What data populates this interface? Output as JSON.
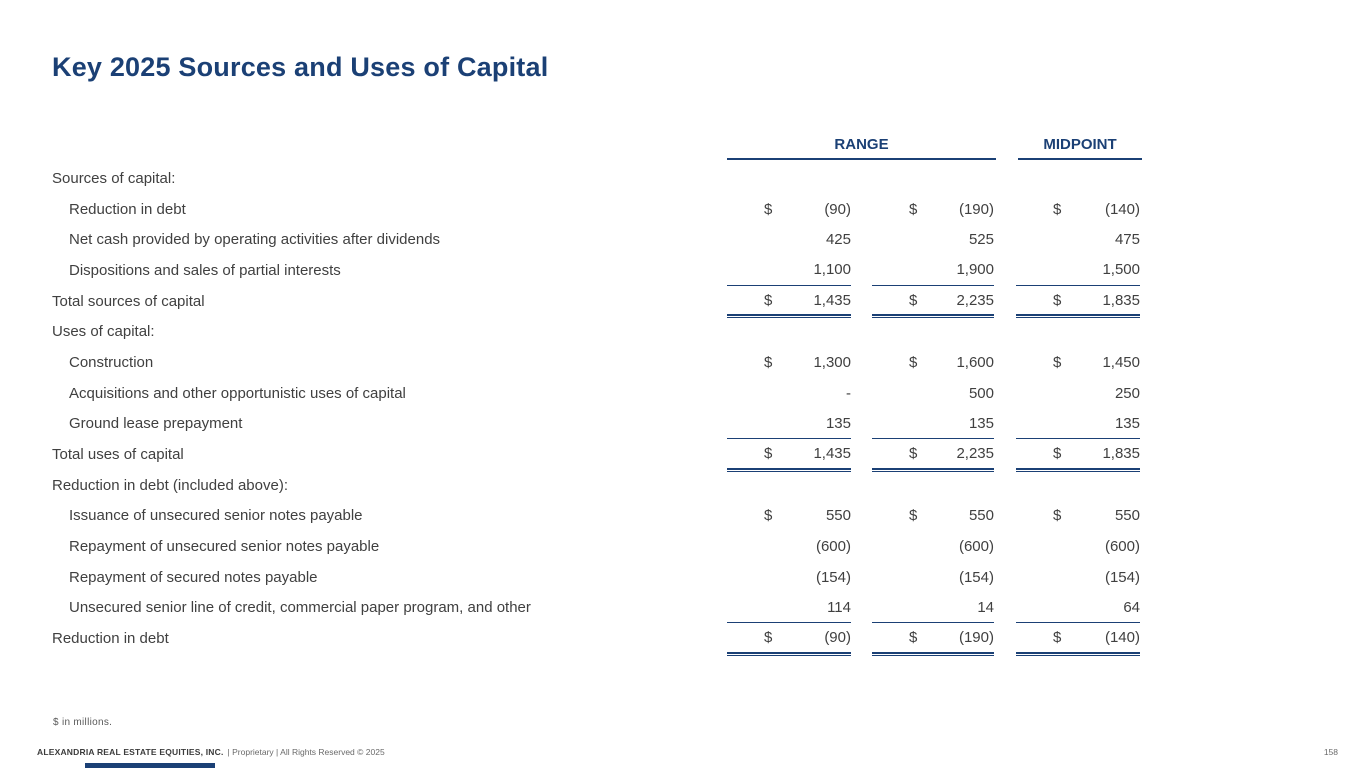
{
  "slide": {
    "title": "Key 2025 Sources and Uses of Capital",
    "footnote": "$ in millions.",
    "footer": {
      "company": "ALEXANDRIA REAL ESTATE EQUITIES, INC.",
      "rights": "| Proprietary | All Rights Reserved © 2025",
      "page": "158"
    }
  },
  "colors": {
    "navy": "#1B4075",
    "body_text": "#404040"
  },
  "table": {
    "headers": {
      "range": "RANGE",
      "midpoint": "MIDPOINT"
    },
    "columns": [
      "range_low",
      "range_high",
      "midpoint"
    ],
    "rows": [
      {
        "label": "Sources of capital:"
      },
      {
        "label": "Reduction in debt",
        "d1": "$",
        "v1": "(90)",
        "d2": "$",
        "v2": "(190)",
        "d3": "$",
        "v3": "(140)"
      },
      {
        "label": "Net cash provided by operating activities after dividends",
        "v1": "425",
        "v2": "525",
        "v3": "475"
      },
      {
        "label": "Dispositions and sales of partial interests",
        "v1": "1,100",
        "v2": "1,900",
        "v3": "1,500"
      },
      {
        "label": "Total sources of capital",
        "d1": "$",
        "v1": "1,435",
        "d2": "$",
        "v2": "2,235",
        "d3": "$",
        "v3": "1,835"
      },
      {
        "label": "Uses of capital:"
      },
      {
        "label": "Construction",
        "d1": "$",
        "v1": "1,300",
        "d2": "$",
        "v2": "1,600",
        "d3": "$",
        "v3": "1,450"
      },
      {
        "label": "Acquisitions and other opportunistic uses of capital",
        "v1": "-",
        "v2": "500",
        "v3": "250"
      },
      {
        "label": "Ground lease prepayment",
        "v1": "135",
        "v2": "135",
        "v3": "135"
      },
      {
        "label": "Total uses of capital",
        "d1": "$",
        "v1": "1,435",
        "d2": "$",
        "v2": "2,235",
        "d3": "$",
        "v3": "1,835"
      },
      {
        "label": "Reduction in debt (included above):"
      },
      {
        "label": "Issuance of unsecured senior notes payable",
        "d1": "$",
        "v1": "550",
        "d2": "$",
        "v2": "550",
        "d3": "$",
        "v3": "550"
      },
      {
        "label": "Repayment of unsecured senior notes payable",
        "v1": "(600)",
        "v2": "(600)",
        "v3": "(600)"
      },
      {
        "label": "Repayment of secured notes payable",
        "v1": "(154)",
        "v2": "(154)",
        "v3": "(154)"
      },
      {
        "label": "Unsecured senior line of credit, commercial paper program, and other",
        "v1": "114",
        "v2": "14",
        "v3": "64"
      },
      {
        "label": "Reduction in debt",
        "d1": "$",
        "v1": "(90)",
        "d2": "$",
        "v2": "(190)",
        "d3": "$",
        "v3": "(140)"
      }
    ]
  }
}
